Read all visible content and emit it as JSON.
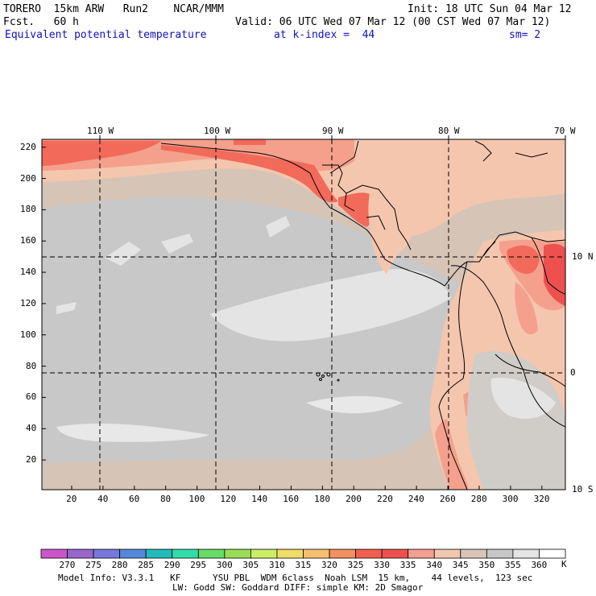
{
  "header": {
    "model": "TORERO  15km ARW   Run2    NCAR/MMM",
    "init": "Init: 18 UTC Sun 04 Mar 12",
    "fcst": "Fcst.   60 h",
    "valid": "Valid: 06 UTC Wed 07 Mar 12 (00 CST Wed 07 Mar 12)",
    "field": "Equivalent potential temperature",
    "level": "at k-index =  44",
    "smooth": "sm= 2"
  },
  "map": {
    "lon_labels": [
      "110 W",
      "100 W",
      "90 W",
      "80 W",
      "70 W"
    ],
    "lat_labels": [
      "10 N",
      "0",
      "10 S"
    ],
    "x_ticks": [
      "20",
      "40",
      "60",
      "80",
      "100",
      "120",
      "140",
      "160",
      "180",
      "200",
      "220",
      "240",
      "260",
      "280",
      "300",
      "320"
    ],
    "y_ticks": [
      "220",
      "200",
      "180",
      "160",
      "140",
      "120",
      "100",
      "80",
      "60",
      "40",
      "20"
    ],
    "x_range": [
      1,
      335
    ],
    "y_range": [
      1,
      225
    ]
  },
  "colorbar": {
    "labels": [
      "270",
      "275",
      "280",
      "285",
      "290",
      "295",
      "300",
      "305",
      "310",
      "315",
      "320",
      "325",
      "330",
      "335",
      "340",
      "345",
      "350",
      "355",
      "360"
    ],
    "unit": "K",
    "colors": [
      "#cc55cc",
      "#9966cc",
      "#7777dd",
      "#5588dd",
      "#22bbbb",
      "#33ddaa",
      "#66dd66",
      "#99dd55",
      "#ccee66",
      "#eedd66",
      "#f6c070",
      "#f49060",
      "#f06050",
      "#ee5050",
      "#f4a090",
      "#f2c8b0",
      "#d8c4b8",
      "#c8c8c8",
      "#e4e4e4",
      "#ffffff"
    ]
  },
  "footer": {
    "line1": "Model Info: V3.3.1   KF      YSU PBL  WDM 6class  Noah LSM  15 km,    44 levels,  123 sec",
    "line2": "LW: Godd SW: Goddard DIFF: simple KM: 2D Smagor"
  }
}
